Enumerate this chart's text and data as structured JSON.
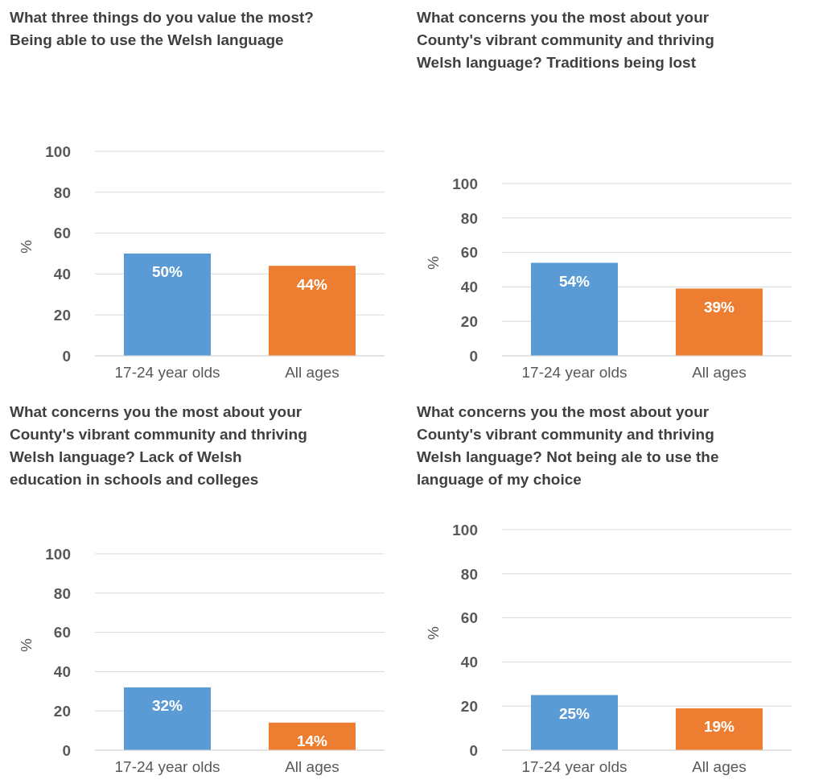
{
  "chart_data": [
    {
      "type": "bar",
      "title": "What three things do you value the most? Being able to use the Welsh language",
      "ylabel": "%",
      "categories": [
        "17-24 year olds",
        "All ages"
      ],
      "values": [
        50,
        44
      ],
      "colors": [
        "#5b9bd5",
        "#ed7d31"
      ],
      "value_labels": [
        "50%",
        "44%"
      ],
      "ylim": [
        0,
        100
      ],
      "yticks": [
        0,
        20,
        40,
        60,
        80,
        100
      ],
      "grid": "y"
    },
    {
      "type": "bar",
      "title": "What concerns you the most about your County's vibrant community and thriving Welsh language? Traditions being lost",
      "ylabel": "%",
      "categories": [
        "17-24 year olds",
        "All ages"
      ],
      "values": [
        54,
        39
      ],
      "colors": [
        "#5b9bd5",
        "#ed7d31"
      ],
      "value_labels": [
        "54%",
        "39%"
      ],
      "ylim": [
        0,
        100
      ],
      "yticks": [
        0,
        20,
        40,
        60,
        80,
        100
      ],
      "grid": "y"
    },
    {
      "type": "bar",
      "title": "What concerns you the most about your County's vibrant community and thriving Welsh language? Lack of Welsh education in schools and colleges",
      "ylabel": "%",
      "categories": [
        "17-24 year olds",
        "All ages"
      ],
      "values": [
        32,
        14
      ],
      "colors": [
        "#5b9bd5",
        "#ed7d31"
      ],
      "value_labels": [
        "32%",
        "14%"
      ],
      "ylim": [
        0,
        100
      ],
      "yticks": [
        0,
        20,
        40,
        60,
        80,
        100
      ],
      "grid": "y"
    },
    {
      "type": "bar",
      "title": "What concerns you the most about your County's vibrant community and thriving Welsh language? Not being ale to use the language of my choice",
      "ylabel": "%",
      "categories": [
        "17-24 year olds",
        "All ages"
      ],
      "values": [
        25,
        19
      ],
      "colors": [
        "#5b9bd5",
        "#ed7d31"
      ],
      "value_labels": [
        "25%",
        "19%"
      ],
      "ylim": [
        0,
        100
      ],
      "yticks": [
        0,
        20,
        40,
        60,
        80,
        100
      ],
      "grid": "y"
    }
  ]
}
